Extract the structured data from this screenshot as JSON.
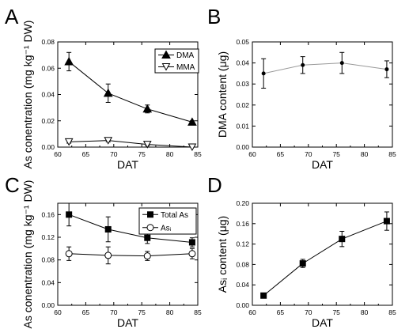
{
  "figure": {
    "panels": [
      "A",
      "B",
      "C",
      "D"
    ]
  },
  "chart_data": [
    {
      "panel": "A",
      "type": "line",
      "xlabel": "DAT",
      "ylabel": "As conentration (mg kg⁻¹ DW)",
      "xlim": [
        60,
        85
      ],
      "ylim": [
        0,
        0.08
      ],
      "xticks": [
        60,
        65,
        70,
        75,
        80,
        85
      ],
      "yticks": [
        0.0,
        0.02,
        0.04,
        0.06,
        0.08
      ],
      "ytick_decimals": 2,
      "legend": "top-right",
      "series": [
        {
          "name": "DMA",
          "marker": "triangle",
          "filled": true,
          "x": [
            62,
            69,
            76,
            84
          ],
          "y": [
            0.065,
            0.041,
            0.029,
            0.019
          ],
          "err": [
            0.007,
            0.007,
            0.003,
            0.001
          ]
        },
        {
          "name": "MMA",
          "marker": "triangle-down",
          "filled": false,
          "x": [
            62,
            69,
            76,
            84
          ],
          "y": [
            0.004,
            0.005,
            0.002,
            0.0
          ],
          "err": [
            0.001,
            0.001,
            0.001,
            0.0
          ]
        }
      ]
    },
    {
      "panel": "B",
      "type": "line",
      "xlabel": "DAT",
      "ylabel": "DMA content (μg)",
      "xlim": [
        60,
        85
      ],
      "ylim": [
        0,
        0.05
      ],
      "xticks": [
        60,
        65,
        70,
        75,
        80,
        85
      ],
      "yticks": [
        0.0,
        0.01,
        0.02,
        0.03,
        0.04,
        0.05
      ],
      "ytick_decimals": 2,
      "line_color": "#999999",
      "series": [
        {
          "marker": "dot",
          "filled": true,
          "x": [
            62,
            69,
            76,
            84
          ],
          "y": [
            0.035,
            0.039,
            0.04,
            0.037
          ],
          "err": [
            0.007,
            0.004,
            0.005,
            0.004
          ]
        }
      ]
    },
    {
      "panel": "C",
      "type": "line",
      "xlabel": "DAT",
      "ylabel": "As conentration (mg kg⁻¹ DW)",
      "xlim": [
        60,
        85
      ],
      "ylim": [
        0,
        0.18
      ],
      "xticks": [
        60,
        65,
        70,
        75,
        80,
        85
      ],
      "yticks": [
        0.0,
        0.04,
        0.08,
        0.12,
        0.16
      ],
      "ytick_decimals": 2,
      "legend": "top-right",
      "series": [
        {
          "name": "Total As",
          "marker": "square",
          "filled": true,
          "x": [
            62,
            69,
            76,
            84
          ],
          "y": [
            0.16,
            0.134,
            0.119,
            0.111
          ],
          "err": [
            0.02,
            0.022,
            0.01,
            0.008
          ]
        },
        {
          "name": "Asᵢ",
          "marker": "circle",
          "filled": false,
          "x": [
            62,
            69,
            76,
            84
          ],
          "y": [
            0.091,
            0.088,
            0.087,
            0.091
          ],
          "err": [
            0.012,
            0.015,
            0.008,
            0.009
          ]
        }
      ]
    },
    {
      "panel": "D",
      "type": "line",
      "xlabel": "DAT",
      "ylabel": "Asᵢ content (μg)",
      "xlim": [
        60,
        85
      ],
      "ylim": [
        0,
        0.2
      ],
      "xticks": [
        60,
        65,
        70,
        75,
        80,
        85
      ],
      "yticks": [
        0.0,
        0.04,
        0.08,
        0.12,
        0.16,
        0.2
      ],
      "ytick_decimals": 2,
      "series": [
        {
          "marker": "square",
          "filled": true,
          "x": [
            62,
            69,
            76,
            84
          ],
          "y": [
            0.019,
            0.082,
            0.13,
            0.165
          ],
          "err": [
            0.002,
            0.008,
            0.015,
            0.018
          ]
        }
      ]
    }
  ]
}
